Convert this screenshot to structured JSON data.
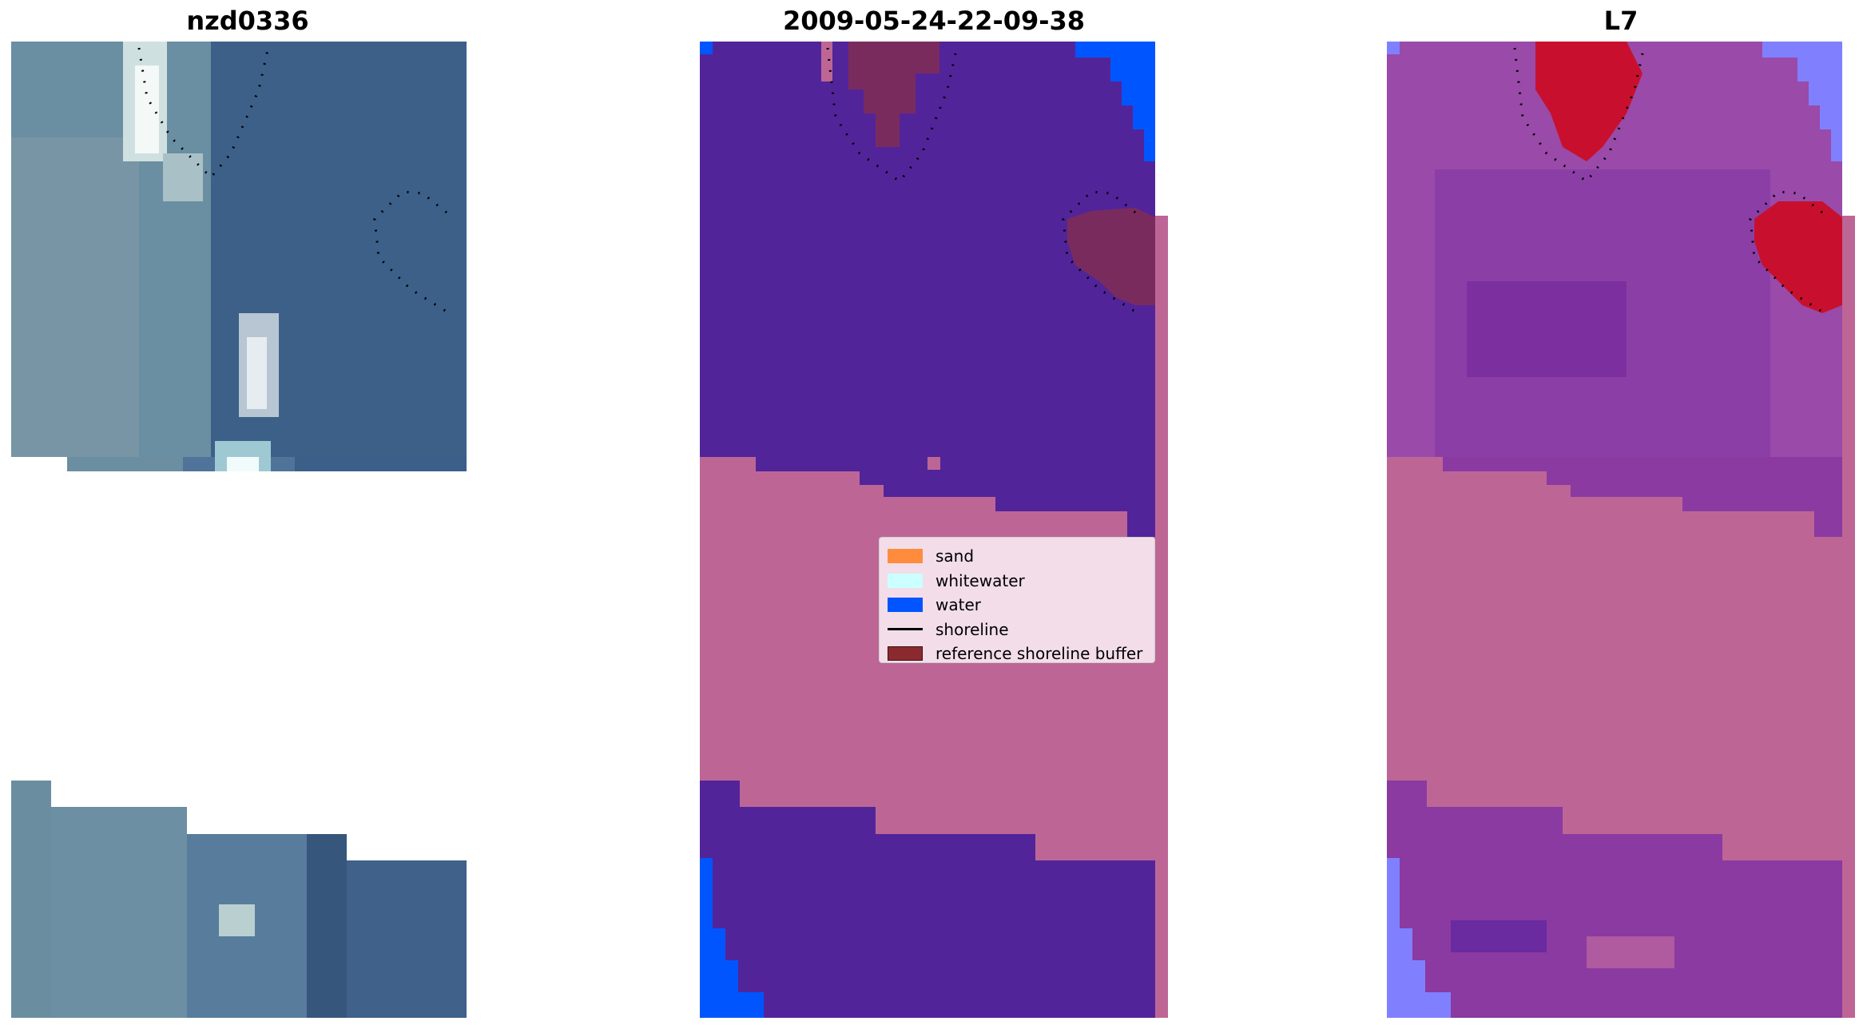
{
  "panels": [
    {
      "title": "nzd0336"
    },
    {
      "title": "2009-05-24-22-09-38"
    },
    {
      "title": "L7"
    }
  ],
  "legend": {
    "items": [
      {
        "label": "sand",
        "color": "#ff8c3c",
        "kind": "patch"
      },
      {
        "label": "whitewater",
        "color": "#ccffff",
        "kind": "patch"
      },
      {
        "label": "water",
        "color": "#0055ff",
        "kind": "patch"
      },
      {
        "label": "shoreline",
        "color": "#000000",
        "kind": "line"
      },
      {
        "label": "reference shoreline buffer",
        "color": "#8b2a2e",
        "kind": "patch"
      }
    ]
  },
  "colors": {
    "land_class": "#52249a",
    "overlay_pink": "#bd6696",
    "water_class": "#0055ff",
    "buffer": "#7a2b5e",
    "rgb_water": "#3a5e8a",
    "rgb_shallow": "#5d8aa0",
    "mndwi_high": "#c8102e",
    "mndwi_mid": "#8a3aa0",
    "mndwi_low": "#8080ff"
  }
}
